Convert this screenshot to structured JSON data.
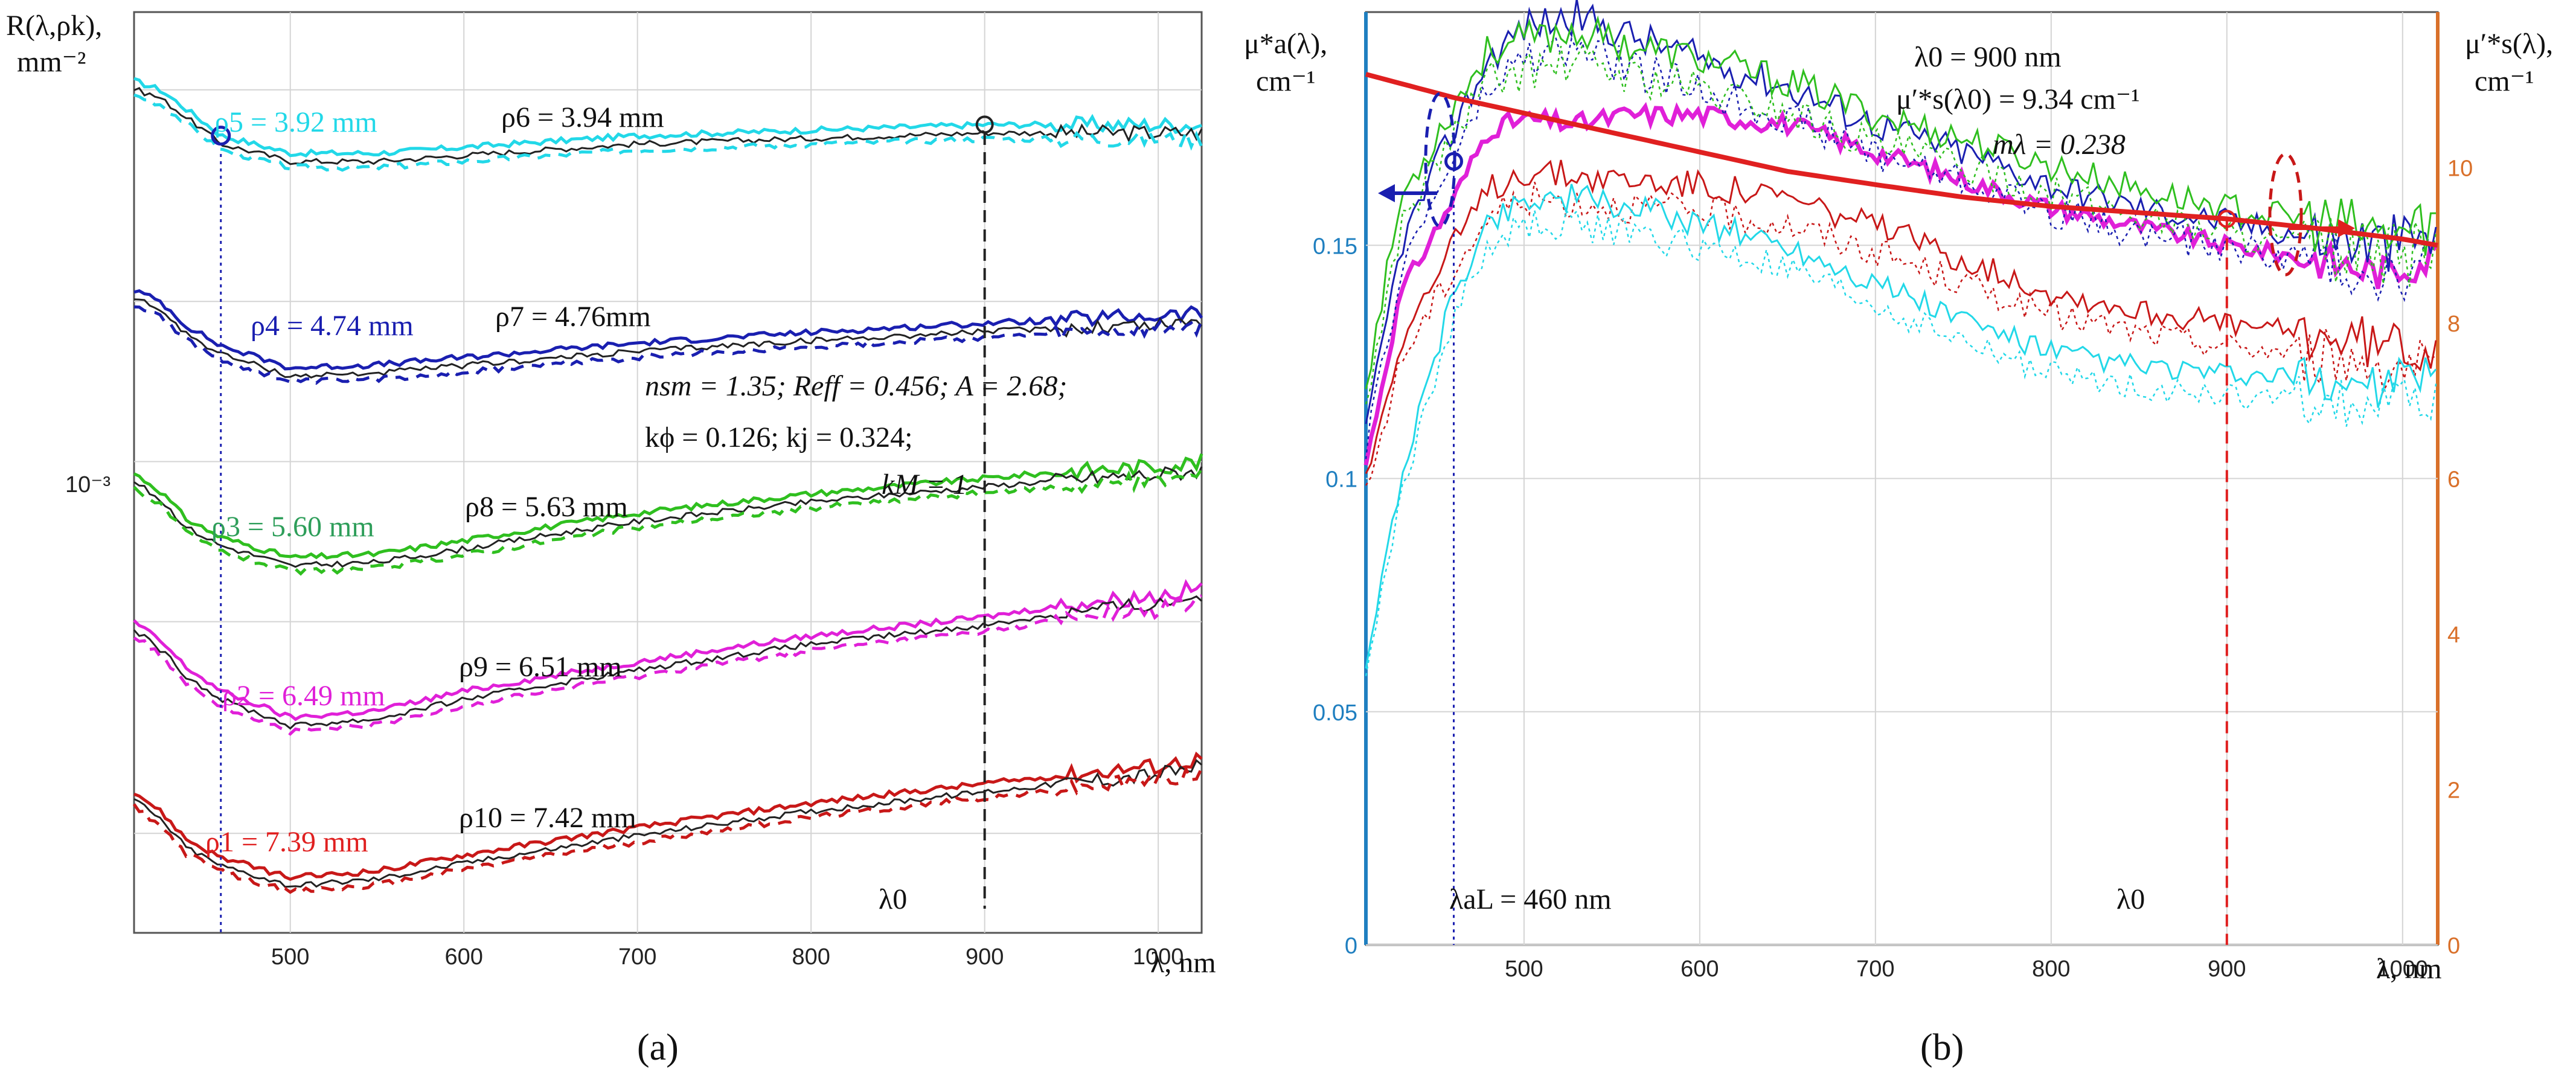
{
  "chart_data": [
    {
      "panel": "a",
      "type": "line",
      "panel_label": "(a)",
      "title": "",
      "xlabel": "λ, nm",
      "ylabel_line1": "R(λ,ρk),",
      "ylabel_line2": "mm⁻²",
      "y_scale": "log",
      "xlim": [
        410,
        1025
      ],
      "x_ticks": [
        500,
        600,
        700,
        800,
        900,
        1000
      ],
      "y_tick_label": "10⁻³",
      "lambda0_label": "λ0",
      "lambda0_value": 900,
      "lambda_L_value": 460,
      "params_line1": "nsm = 1.35; Reff = 0.456; A = 2.68;",
      "params_line2": "kϕ = 0.126; kj = 0.324;",
      "params_line3": "kM = 1",
      "colors": {
        "cyan": "#22d8e8",
        "blue": "#1a1fb0",
        "green": "#2fbf1f",
        "magenta": "#e020d8",
        "red": "#c81818",
        "black": "#222222"
      },
      "anchor_x": [
        410,
        425,
        440,
        460,
        500,
        550,
        600,
        700,
        800,
        900,
        950,
        1000,
        1025
      ],
      "series": [
        {
          "name": "ρ5 = 3.92 mm",
          "pair_label": "ρ6 = 3.94 mm",
          "color": "cyan",
          "values": [
            0.0052,
            0.005,
            0.0046,
            0.0041,
            0.0038,
            0.0038,
            0.0039,
            0.0041,
            0.0042,
            0.0043,
            0.0043,
            0.0043,
            0.0043
          ]
        },
        {
          "name": "ρ4 = 4.74 mm",
          "pair_label": "ρ7 = 4.76mm",
          "color": "blue",
          "values": [
            0.0021,
            0.002,
            0.0018,
            0.00165,
            0.0015,
            0.00152,
            0.00157,
            0.00167,
            0.00175,
            0.00182,
            0.00185,
            0.00188,
            0.0019
          ]
        },
        {
          "name": "ρ3 = 5.60 mm",
          "pair_label": "ρ8 = 5.63 mm",
          "color": "green",
          "values": [
            0.00095,
            0.00088,
            0.00078,
            0.00072,
            0.00066,
            0.00067,
            0.00071,
            0.0008,
            0.00087,
            0.00093,
            0.00096,
            0.00098,
            0.001
          ]
        },
        {
          "name": "ρ2 = 6.49 mm",
          "pair_label": "ρ9 = 6.51 mm",
          "color": "magenta",
          "values": [
            0.0005,
            0.00046,
            0.00041,
            0.00037,
            0.00033,
            0.00034,
            0.00037,
            0.00042,
            0.00047,
            0.00051,
            0.00054,
            0.00056,
            0.00058
          ]
        },
        {
          "name": "ρ1 = 7.39 mm",
          "pair_label": "ρ10 = 7.42 mm",
          "color": "red",
          "values": [
            0.00024,
            0.00022,
            0.000195,
            0.00018,
            0.000165,
            0.00017,
            0.000182,
            0.000205,
            0.000228,
            0.000248,
            0.000258,
            0.000268,
            0.000276
          ]
        }
      ]
    },
    {
      "panel": "b",
      "type": "line",
      "panel_label": "(b)",
      "xlabel": "λ, nm",
      "ylabel_left_line1": "μ*a(λ),",
      "ylabel_left_line2": "cm⁻¹",
      "ylabel_right_line1": "μ′*s(λ),",
      "ylabel_right_line2": "cm⁻¹",
      "xlim": [
        410,
        1020
      ],
      "ylim_left": [
        0,
        0.2
      ],
      "ylim_right": [
        0,
        12
      ],
      "x_ticks": [
        500,
        600,
        700,
        800,
        900,
        1000
      ],
      "y_ticks_left": [
        0,
        0.05,
        0.1,
        0.15
      ],
      "y_ticks_right": [
        0,
        2,
        4,
        6,
        8,
        10
      ],
      "y_tick_labels_left": [
        "0",
        "0.05",
        "0.1",
        "0.15"
      ],
      "ann_lambda0": "λ0 = 900 nm",
      "ann_mus": "μ′*s(λ0) = 9.34 cm⁻¹",
      "ann_m": "mλ = 0.238",
      "lambda_aL_label": "λaL = 460 nm",
      "lambda0_label": "λ0",
      "lambda0_value": 900,
      "lambda_aL_value": 460,
      "mus_curve": {
        "name": "μ′*s(λ)",
        "color": "#e02020",
        "x": [
          410,
          460,
          500,
          550,
          600,
          650,
          700,
          750,
          800,
          850,
          900,
          950,
          1000,
          1020
        ],
        "values": [
          11.2,
          10.9,
          10.7,
          10.45,
          10.2,
          9.95,
          9.78,
          9.62,
          9.5,
          9.42,
          9.34,
          9.22,
          9.08,
          9.0
        ]
      },
      "anchor_x": [
        410,
        430,
        460,
        480,
        500,
        530,
        560,
        600,
        650,
        700,
        750,
        800,
        850,
        900,
        950,
        990,
        1020
      ],
      "series": [
        {
          "name": "mean",
          "color": "#e020d8",
          "values": [
            0.103,
            0.14,
            0.16,
            0.175,
            0.177,
            0.176,
            0.178,
            0.178,
            0.176,
            0.17,
            0.164,
            0.158,
            0.154,
            0.15,
            0.147,
            0.144,
            0.148
          ]
        },
        {
          "name": "upper-blue",
          "color": "#1a1fb0",
          "values": [
            0.11,
            0.15,
            0.175,
            0.19,
            0.197,
            0.199,
            0.195,
            0.19,
            0.184,
            0.176,
            0.17,
            0.163,
            0.158,
            0.155,
            0.152,
            0.15,
            0.152
          ]
        },
        {
          "name": "upper-green",
          "color": "#2fbf1f",
          "values": [
            0.12,
            0.16,
            0.18,
            0.192,
            0.194,
            0.196,
            0.193,
            0.19,
            0.185,
            0.178,
            0.173,
            0.167,
            0.162,
            0.158,
            0.155,
            0.152,
            0.155
          ]
        },
        {
          "name": "red",
          "color": "#c81818",
          "values": [
            0.1,
            0.13,
            0.15,
            0.162,
            0.166,
            0.165,
            0.164,
            0.163,
            0.16,
            0.154,
            0.147,
            0.14,
            0.136,
            0.133,
            0.131,
            0.129,
            0.128
          ]
        },
        {
          "name": "cyan",
          "color": "#22d8e8",
          "values": [
            0.06,
            0.1,
            0.14,
            0.155,
            0.16,
            0.16,
            0.158,
            0.155,
            0.15,
            0.142,
            0.134,
            0.127,
            0.124,
            0.122,
            0.121,
            0.12,
            0.122
          ]
        }
      ]
    }
  ]
}
